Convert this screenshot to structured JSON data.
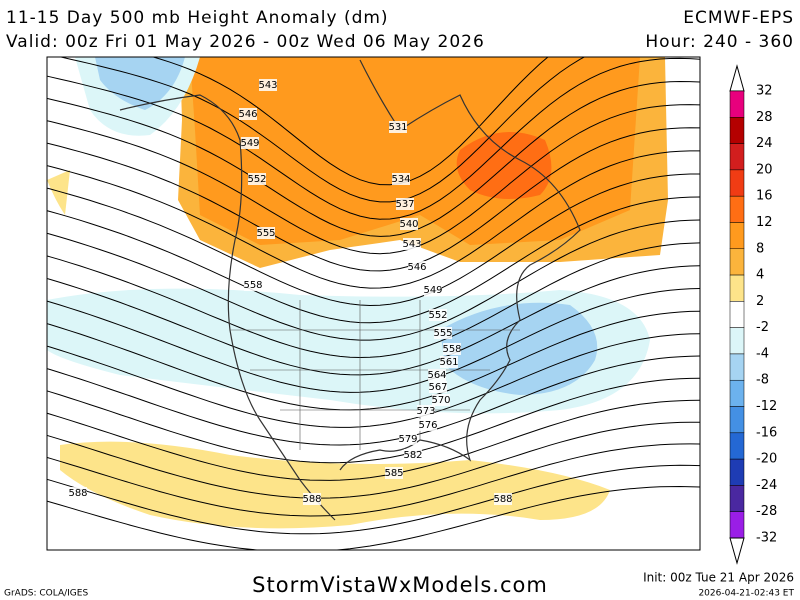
{
  "header": {
    "title": "11-15 Day 500 mb Height Anomaly (dm)",
    "model": "ECMWF-EPS",
    "valid": "Valid: 00z Fri 01 May 2026 - 00z Wed 06 May 2026",
    "hour": "Hour: 240 - 360"
  },
  "colorbar": {
    "labels": [
      32,
      28,
      24,
      20,
      16,
      12,
      8,
      4,
      2,
      -2,
      -4,
      -8,
      -12,
      -16,
      -20,
      -24,
      -28,
      -32
    ],
    "colors": [
      "#e8007d",
      "#b40000",
      "#d21e1e",
      "#f03c14",
      "#ff6e14",
      "#ff9a1e",
      "#fbb43c",
      "#fde48a",
      "#ffffff",
      "#dcf6f8",
      "#a6d4f2",
      "#6cb2ee",
      "#4490e4",
      "#2468d4",
      "#1e3cb4",
      "#4a28a0",
      "#9a1ee6"
    ]
  },
  "contour_labels": [
    "543",
    "546",
    "549",
    "552",
    "555",
    "558",
    "531",
    "534",
    "537",
    "540",
    "543",
    "546",
    "549",
    "552",
    "555",
    "558",
    "561",
    "564",
    "567",
    "570",
    "573",
    "576",
    "579",
    "582",
    "585",
    "588",
    "588",
    "588"
  ],
  "footer": {
    "credit": "GrADS: COLA/IGES",
    "site": "StormVistaWxModels.com",
    "init": "Init: 00z Tue 21 Apr 2026",
    "stamp": "2026-04-21-02:43 ET"
  }
}
